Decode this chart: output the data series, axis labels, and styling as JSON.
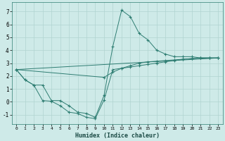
{
  "xlabel": "Humidex (Indice chaleur)",
  "background_color": "#ceeae8",
  "grid_color": "#b0d4d0",
  "line_color": "#2e7d72",
  "xlim": [
    -0.5,
    23.5
  ],
  "ylim": [
    -1.7,
    7.7
  ],
  "yticks": [
    -1,
    0,
    1,
    2,
    3,
    4,
    5,
    6,
    7
  ],
  "xticks": [
    0,
    1,
    2,
    3,
    4,
    5,
    6,
    7,
    8,
    9,
    10,
    11,
    12,
    13,
    14,
    15,
    16,
    17,
    18,
    19,
    20,
    21,
    22,
    23
  ],
  "line_peak_x": [
    0,
    1,
    2,
    3,
    4,
    5,
    6,
    7,
    8,
    9,
    10,
    11,
    12,
    13,
    14,
    15,
    16,
    17,
    18,
    19,
    20,
    21,
    22,
    23
  ],
  "line_peak_y": [
    2.5,
    1.7,
    1.3,
    1.3,
    0.1,
    0.1,
    -0.3,
    -0.8,
    -0.9,
    -1.2,
    0.5,
    4.3,
    7.1,
    6.6,
    5.3,
    4.8,
    4.0,
    3.7,
    3.5,
    3.5,
    3.5,
    3.4,
    3.4,
    3.4
  ],
  "line_low_x": [
    0,
    1,
    2,
    3,
    4,
    5,
    6,
    7,
    8,
    9,
    10,
    11,
    12,
    13,
    14,
    15,
    16,
    17,
    18,
    19,
    20,
    21,
    22,
    23
  ],
  "line_low_y": [
    2.5,
    1.7,
    1.3,
    0.1,
    0.05,
    -0.3,
    -0.8,
    -0.9,
    -1.2,
    -1.3,
    0.15,
    2.5,
    2.6,
    2.7,
    2.8,
    2.9,
    3.0,
    3.1,
    3.2,
    3.3,
    3.35,
    3.4,
    3.4,
    3.4
  ],
  "line_avg_x": [
    0,
    10,
    11,
    12,
    13,
    14,
    15,
    16,
    17,
    18,
    19,
    20,
    21,
    22,
    23
  ],
  "line_avg_y": [
    2.5,
    1.9,
    2.3,
    2.6,
    2.8,
    3.0,
    3.1,
    3.15,
    3.2,
    3.25,
    3.3,
    3.35,
    3.4,
    3.4,
    3.4
  ],
  "line_trend_x": [
    0,
    23
  ],
  "line_trend_y": [
    2.5,
    3.4
  ]
}
